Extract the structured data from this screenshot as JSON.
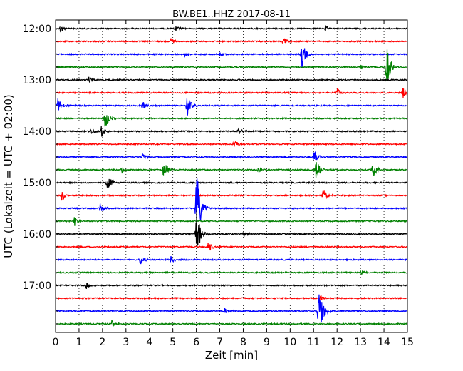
{
  "chart_data": {
    "type": "line",
    "title": "BW.BE1..HHZ 2017-08-11",
    "xlabel": "Zeit  [min]",
    "ylabel": "UTC (Lokalzeit = UTC + 02:00)",
    "xlim": [
      0,
      15
    ],
    "x_ticks": [
      "0",
      "1",
      "2",
      "3",
      "4",
      "5",
      "6",
      "7",
      "8",
      "9",
      "10",
      "11",
      "12",
      "13",
      "14",
      "15"
    ],
    "y_ticks": [
      "12:00",
      "13:00",
      "14:00",
      "15:00",
      "16:00",
      "17:00"
    ],
    "grid": "vertical dotted",
    "trace_colors": [
      "#000000",
      "#ff0000",
      "#0000ff",
      "#008000"
    ],
    "series": [
      {
        "start": "12:00",
        "color": "#000000",
        "events": [
          {
            "t": 0.2,
            "amp": 0.4
          },
          {
            "t": 5.1,
            "amp": 0.25
          },
          {
            "t": 11.5,
            "amp": 0.2
          }
        ]
      },
      {
        "start": "12:15",
        "color": "#ff0000",
        "events": [
          {
            "t": 4.9,
            "amp": 0.3
          },
          {
            "t": 9.7,
            "amp": 0.4
          }
        ]
      },
      {
        "start": "12:30",
        "color": "#0000ff",
        "events": [
          {
            "t": 5.5,
            "amp": 0.2
          },
          {
            "t": 7.0,
            "amp": 0.2
          },
          {
            "t": 10.5,
            "amp": 1.2
          }
        ]
      },
      {
        "start": "12:45",
        "color": "#008000",
        "events": [
          {
            "t": 13.0,
            "amp": 0.3
          },
          {
            "t": 14.1,
            "amp": 1.8
          }
        ]
      },
      {
        "start": "13:00",
        "color": "#000000",
        "events": [
          {
            "t": 1.4,
            "amp": 0.3
          }
        ]
      },
      {
        "start": "13:15",
        "color": "#ff0000",
        "events": [
          {
            "t": 12.0,
            "amp": 0.45
          },
          {
            "t": 14.8,
            "amp": 0.45
          }
        ]
      },
      {
        "start": "13:30",
        "color": "#0000ff",
        "events": [
          {
            "t": 0.1,
            "amp": 0.6
          },
          {
            "t": 3.7,
            "amp": 0.4
          },
          {
            "t": 5.6,
            "amp": 1.0
          }
        ]
      },
      {
        "start": "13:45",
        "color": "#008000",
        "events": [
          {
            "t": 2.1,
            "amp": 1.0
          }
        ]
      },
      {
        "start": "14:00",
        "color": "#000000",
        "events": [
          {
            "t": 1.5,
            "amp": 0.3
          },
          {
            "t": 1.95,
            "amp": 0.5
          },
          {
            "t": 7.8,
            "amp": 0.3
          }
        ]
      },
      {
        "start": "14:15",
        "color": "#ff0000",
        "events": [
          {
            "t": 7.6,
            "amp": 0.45
          }
        ]
      },
      {
        "start": "14:30",
        "color": "#0000ff",
        "events": [
          {
            "t": 3.7,
            "amp": 0.3
          },
          {
            "t": 11.0,
            "amp": 0.6
          }
        ]
      },
      {
        "start": "14:45",
        "color": "#008000",
        "events": [
          {
            "t": 2.8,
            "amp": 0.3
          },
          {
            "t": 4.6,
            "amp": 1.0
          },
          {
            "t": 8.6,
            "amp": 0.3
          },
          {
            "t": 11.1,
            "amp": 1.0
          },
          {
            "t": 13.5,
            "amp": 0.8
          }
        ]
      },
      {
        "start": "15:00",
        "color": "#000000",
        "events": [
          {
            "t": 2.2,
            "amp": 0.8
          }
        ]
      },
      {
        "start": "15:15",
        "color": "#ff0000",
        "events": [
          {
            "t": 0.25,
            "amp": 0.5
          },
          {
            "t": 11.4,
            "amp": 0.6
          }
        ]
      },
      {
        "start": "15:30",
        "color": "#0000ff",
        "events": [
          {
            "t": 1.9,
            "amp": 0.4
          },
          {
            "t": 6.0,
            "amp": 3.5
          }
        ]
      },
      {
        "start": "15:45",
        "color": "#008000",
        "events": [
          {
            "t": 0.8,
            "amp": 0.4
          }
        ]
      },
      {
        "start": "16:00",
        "color": "#000000",
        "events": [
          {
            "t": 6.0,
            "amp": 2.2
          },
          {
            "t": 8.0,
            "amp": 0.3
          }
        ]
      },
      {
        "start": "16:15",
        "color": "#ff0000",
        "events": [
          {
            "t": 6.5,
            "amp": 0.5
          }
        ]
      },
      {
        "start": "16:30",
        "color": "#0000ff",
        "events": [
          {
            "t": 3.6,
            "amp": 0.5
          },
          {
            "t": 4.9,
            "amp": 0.3
          }
        ]
      },
      {
        "start": "16:45",
        "color": "#008000",
        "events": [
          {
            "t": 13.0,
            "amp": 0.25
          }
        ]
      },
      {
        "start": "17:00",
        "color": "#000000",
        "events": [
          {
            "t": 1.3,
            "amp": 0.3
          }
        ]
      },
      {
        "start": "17:15",
        "color": "#ff0000",
        "events": [
          {
            "t": 11.3,
            "amp": 0.3
          }
        ]
      },
      {
        "start": "17:30",
        "color": "#0000ff",
        "events": [
          {
            "t": 7.2,
            "amp": 0.3
          },
          {
            "t": 11.2,
            "amp": 2.3
          }
        ]
      },
      {
        "start": "17:45",
        "color": "#008000",
        "events": [
          {
            "t": 2.4,
            "amp": 0.3
          }
        ]
      }
    ]
  }
}
